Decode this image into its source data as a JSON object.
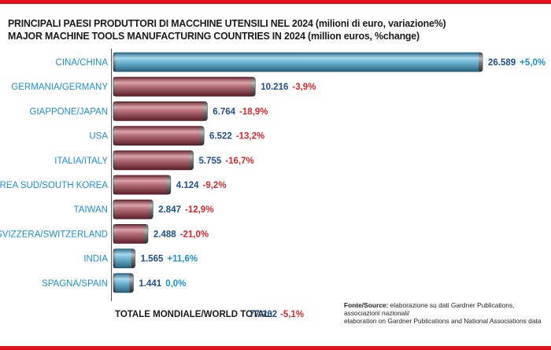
{
  "titles": {
    "line1": "PRINCIPALI PAESI PRODUTTORI DI MACCHINE UTENSILI NEL 2024 (milioni di euro, variazione%)",
    "line2": "MAJOR MACHINE TOOLS MANUFACTURING COUNTRIES IN 2024 (million euros, %change)"
  },
  "chart_data": {
    "type": "bar",
    "orientation": "horizontal",
    "categories": [
      "CINA/CHINA",
      "GERMANIA/GERMANY",
      "GIAPPONE/JAPAN",
      "USA",
      "ITALIA/ITALY",
      "COREA SUD/SOUTH KOREA",
      "TAIWAN",
      "SVIZZERA/SWITZERLAND",
      "INDIA",
      "SPAGNA/SPAIN"
    ],
    "values": [
      26589,
      10216,
      6764,
      6522,
      5755,
      4124,
      2847,
      2488,
      1565,
      1441
    ],
    "value_labels": [
      "26.589",
      "10.216",
      "6.764",
      "6.522",
      "5.755",
      "4.124",
      "2.847",
      "2.488",
      "1.565",
      "1.441"
    ],
    "changes": [
      "+5,0%",
      "-3,9%",
      "-18,9%",
      "-13,2%",
      "-16,7%",
      "-9,2%",
      "-12,9%",
      "-21,0%",
      "+11,6%",
      "0,0%"
    ],
    "change_sign": [
      "pos",
      "neg",
      "neg",
      "neg",
      "neg",
      "neg",
      "neg",
      "neg",
      "pos",
      "pos"
    ],
    "bar_colors": [
      "blue",
      "red",
      "red",
      "red",
      "red",
      "red",
      "red",
      "red",
      "blue",
      "blue"
    ],
    "xlim": [
      0,
      26589
    ],
    "grid": false,
    "legend": "none",
    "total": {
      "label": "TOTALE MONDIALE/WORLD TOTAL:",
      "value": "77.262",
      "change": "-5,1%"
    }
  },
  "source": {
    "label": "Fonte/Source:",
    "line1": " elaborazione su dati Gardner Publications, associazioni nazionali/",
    "line2": "elaboration on Gardner Publications and National Associations data"
  },
  "colors": {
    "red_band": "#e30f1b",
    "blue_bar": "#5ba8c9",
    "red_bar": "#a45560",
    "category_text": "#1d8fce",
    "value_text": "#1e4f8c",
    "negative_text": "#d9262e"
  }
}
